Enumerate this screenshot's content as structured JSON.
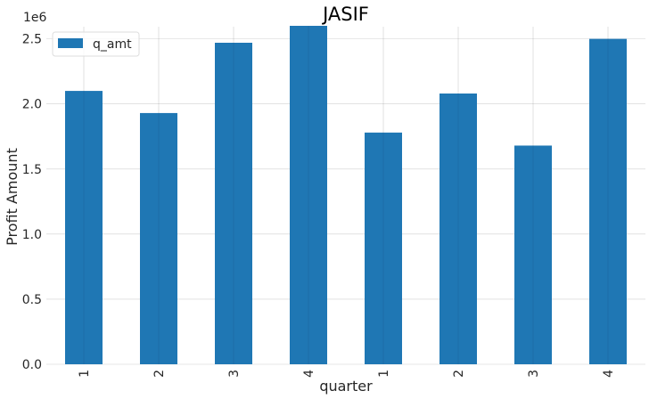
{
  "chart_data": {
    "type": "bar",
    "title": "JASIF",
    "xlabel": "quarter",
    "ylabel": "Profit Amount",
    "y_offset_label": "1e6",
    "categories": [
      "1",
      "2",
      "3",
      "4",
      "1",
      "2",
      "3",
      "4"
    ],
    "series": [
      {
        "name": "q_amt",
        "values": [
          2100000,
          1930000,
          2470000,
          2600000,
          1780000,
          2080000,
          1680000,
          2500000
        ],
        "color": "#1f77b4"
      }
    ],
    "ylim": [
      0,
      2730000
    ],
    "yticks": [
      0,
      500000,
      1000000,
      1500000,
      2000000,
      2500000
    ],
    "ytick_labels": [
      "0.0",
      "0.5",
      "1.0",
      "1.5",
      "2.0",
      "2.5"
    ],
    "grid": true,
    "legend_position": "top-left"
  }
}
